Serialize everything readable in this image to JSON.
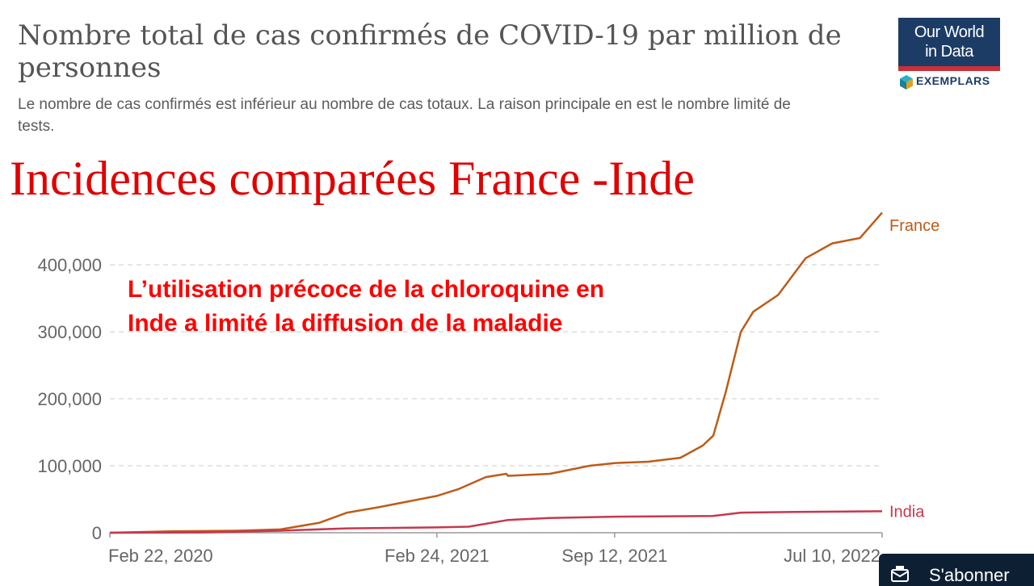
{
  "header": {
    "title": "Nombre total de cas confirmés de COVID-19 par million de personnes",
    "subtitle": "Le nombre de cas confirmés est inférieur au nombre de cas totaux. La raison principale en est le nombre limité de tests."
  },
  "overlay": {
    "title": "Incidences comparées France -Inde",
    "annotation_line1": "L’utilisation précoce de la chloroquine en",
    "annotation_line2": "Inde  a limité la diffusion de la maladie"
  },
  "logo": {
    "line1": "Our World",
    "line2": "in Data",
    "partner": "EXEMPLARS",
    "icon": "cube-icon",
    "brand_color": "#1c3c66",
    "accent_color": "#c8303a"
  },
  "subscribe": {
    "label": "S'abonner",
    "icon": "subscribe-icon"
  },
  "chart_data": {
    "type": "line",
    "title": "Nombre total de cas confirmés de COVID-19 par million de personnes",
    "xlabel": "",
    "ylabel": "",
    "ylim": [
      0,
      470000
    ],
    "xlim": [
      "2020-02-22",
      "2022-07-10"
    ],
    "grid": "horizontal dashed",
    "legend": "end-of-line labels",
    "x_ticks": [
      {
        "date": "2020-02-22",
        "label": "Feb 22, 2020"
      },
      {
        "date": "2021-02-24",
        "label": "Feb 24, 2021"
      },
      {
        "date": "2021-09-12",
        "label": "Sep 12, 2021"
      },
      {
        "date": "2022-07-10",
        "label": "Jul 10, 2022"
      }
    ],
    "y_ticks": [
      {
        "value": 0,
        "label": "0"
      },
      {
        "value": 100000,
        "label": "100,000"
      },
      {
        "value": 200000,
        "label": "200,000"
      },
      {
        "value": 300000,
        "label": "300,000"
      },
      {
        "value": 400000,
        "label": "400,000"
      }
    ],
    "series": [
      {
        "name": "France",
        "color": "#bf5b17",
        "points": [
          [
            "2020-02-22",
            0
          ],
          [
            "2020-05-01",
            2000
          ],
          [
            "2020-07-15",
            3000
          ],
          [
            "2020-09-01",
            5000
          ],
          [
            "2020-10-15",
            15000
          ],
          [
            "2020-11-15",
            30000
          ],
          [
            "2020-12-20",
            38000
          ],
          [
            "2021-02-24",
            55000
          ],
          [
            "2021-03-20",
            65000
          ],
          [
            "2021-04-20",
            83000
          ],
          [
            "2021-05-13",
            88000
          ],
          [
            "2021-05-15",
            85000
          ],
          [
            "2021-07-01",
            88000
          ],
          [
            "2021-08-15",
            100000
          ],
          [
            "2021-09-12",
            104000
          ],
          [
            "2021-10-20",
            106000
          ],
          [
            "2021-11-25",
            112000
          ],
          [
            "2021-12-20",
            130000
          ],
          [
            "2022-01-01",
            145000
          ],
          [
            "2022-01-15",
            210000
          ],
          [
            "2022-02-01",
            300000
          ],
          [
            "2022-02-15",
            330000
          ],
          [
            "2022-03-15",
            355000
          ],
          [
            "2022-04-15",
            410000
          ],
          [
            "2022-05-15",
            432000
          ],
          [
            "2022-06-15",
            440000
          ],
          [
            "2022-07-10",
            478000
          ]
        ]
      },
      {
        "name": "India",
        "color": "#c6384f",
        "points": [
          [
            "2020-02-22",
            0
          ],
          [
            "2020-06-01",
            300
          ],
          [
            "2020-09-01",
            3000
          ],
          [
            "2020-11-15",
            6500
          ],
          [
            "2021-02-24",
            8000
          ],
          [
            "2021-04-01",
            9000
          ],
          [
            "2021-05-15",
            19000
          ],
          [
            "2021-07-01",
            22000
          ],
          [
            "2021-09-12",
            24000
          ],
          [
            "2021-12-31",
            25000
          ],
          [
            "2022-02-01",
            30000
          ],
          [
            "2022-04-01",
            31000
          ],
          [
            "2022-07-10",
            32000
          ]
        ]
      }
    ]
  }
}
